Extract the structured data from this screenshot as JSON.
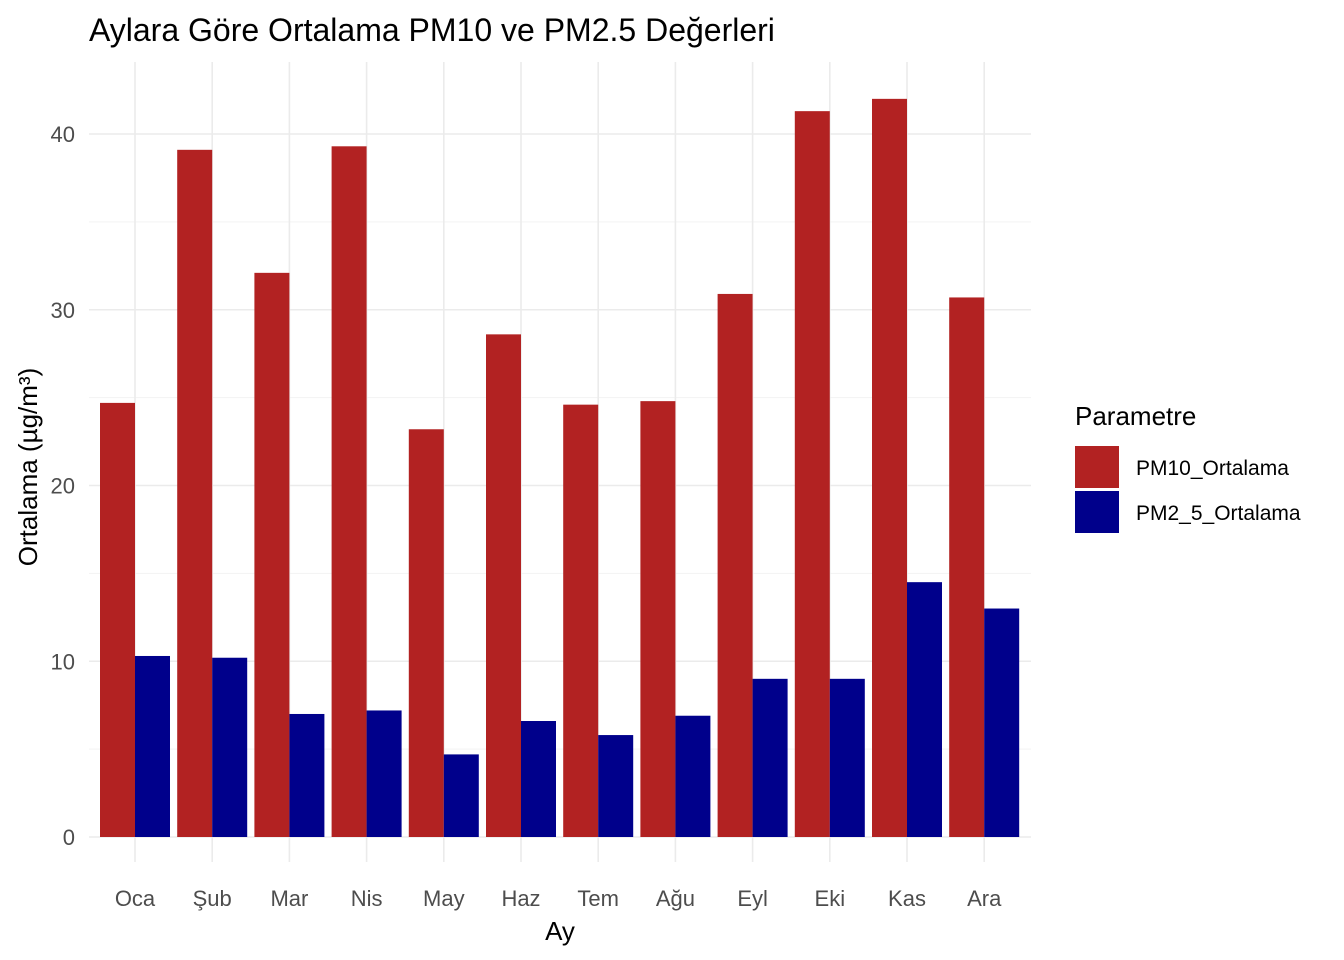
{
  "chart_data": {
    "type": "bar",
    "title": "Aylara Göre Ortalama PM10 ve PM2.5 Değerleri",
    "xlabel": "Ay",
    "ylabel": "Ortalama (µg/m³)",
    "categories": [
      "Oca",
      "Şub",
      "Mar",
      "Nis",
      "May",
      "Haz",
      "Tem",
      "Ağu",
      "Eyl",
      "Eki",
      "Kas",
      "Ara"
    ],
    "series": [
      {
        "name": "PM10_Ortalama",
        "color": "#b22222",
        "values": [
          24.7,
          39.1,
          32.1,
          39.3,
          23.2,
          28.6,
          24.6,
          24.8,
          30.9,
          41.3,
          42.0,
          30.7
        ]
      },
      {
        "name": "PM2_5_Ortalama",
        "color": "#00008b",
        "values": [
          10.3,
          10.2,
          7.0,
          7.2,
          4.7,
          6.6,
          5.8,
          6.9,
          9.0,
          9.0,
          14.5,
          13.0
        ]
      }
    ],
    "ylim": [
      0,
      44
    ],
    "yticks": [
      0,
      10,
      20,
      30,
      40
    ],
    "yticks_minor": [
      5,
      15,
      25,
      35
    ],
    "legend": {
      "title": "Parametre",
      "position": "right"
    },
    "grid": true
  }
}
